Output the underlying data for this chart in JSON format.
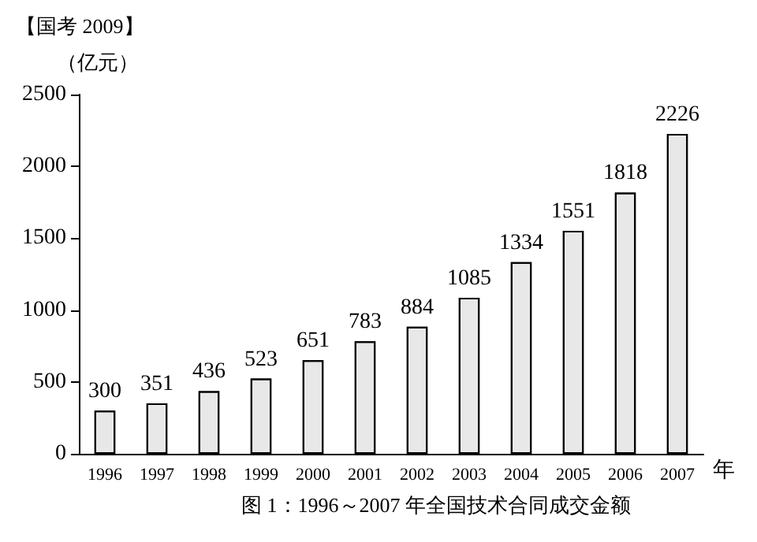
{
  "chart_data": {
    "type": "bar",
    "title": "图 1：1996～2007 年全国技术合同成交金额",
    "ylabel": "（亿元）",
    "xlabel": "年",
    "annotations": [
      "【国考 2009】"
    ],
    "categories": [
      "1996",
      "1997",
      "1998",
      "1999",
      "2000",
      "2001",
      "2002",
      "2003",
      "2004",
      "2005",
      "2006",
      "2007"
    ],
    "values": [
      300,
      351,
      436,
      523,
      651,
      783,
      884,
      1085,
      1334,
      1551,
      1818,
      2226
    ],
    "color": "#e8e8e8",
    "ylim": [
      0,
      2500
    ],
    "yticks": [
      0,
      500,
      1000,
      1500,
      2000,
      2500
    ],
    "grid": false,
    "data_labels": true
  }
}
